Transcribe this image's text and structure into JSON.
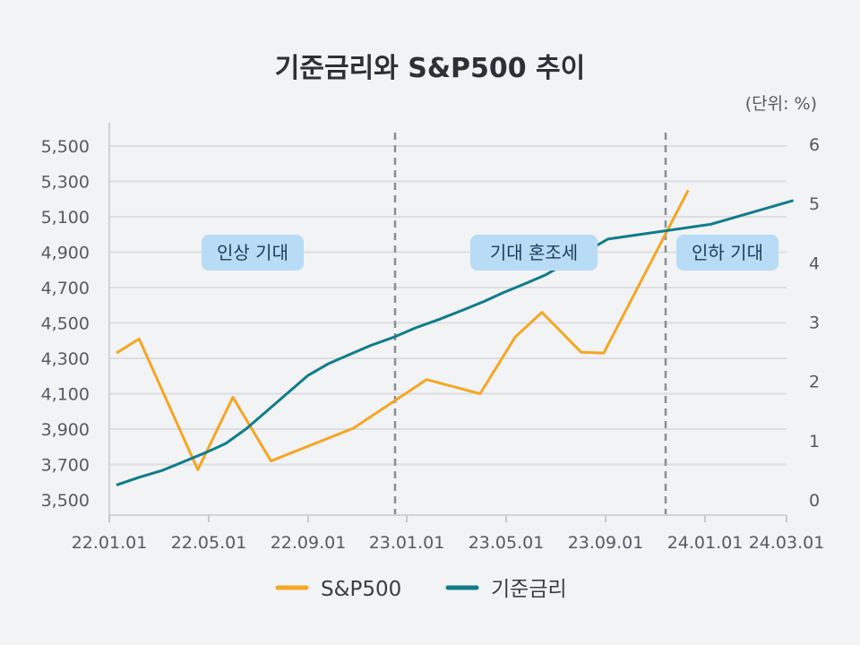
{
  "chart_data": {
    "type": "line",
    "title": "기준금리와 S&P500 추이",
    "unit_note": "(단위: %)",
    "x_ticks": [
      "22.01.01",
      "22.05.01",
      "22.09.01",
      "23.01.01",
      "23.05.01",
      "23.09.01",
      "24.01.01",
      "24.03.01"
    ],
    "y_left_ticks": [
      "3,500",
      "3,700",
      "3,900",
      "4,100",
      "4,300",
      "4,500",
      "4,700",
      "4,900",
      "5,100",
      "5,300",
      "5,500"
    ],
    "y_left_lim": [
      3500,
      5600
    ],
    "y_right_ticks": [
      "0",
      "1",
      "2",
      "3",
      "4",
      "5",
      "6"
    ],
    "y_right_lim": [
      0,
      6.1
    ],
    "series": [
      {
        "name": "S&P500",
        "axis": "left",
        "color": "#f5a623",
        "x": [
          0,
          2.2,
          7.9,
          11.3,
          15,
          23,
          30.1,
          35.3,
          38.7,
          41.3,
          45.1,
          47.3,
          55.5
        ],
        "y": [
          4330,
          4410,
          3670,
          4080,
          3720,
          3905,
          4180,
          4100,
          4420,
          4560,
          4335,
          4330,
          5250
        ]
      },
      {
        "name": "기준금리",
        "axis": "right",
        "color": "#0e7c8c",
        "x": [
          0,
          2.2,
          4.5,
          6.6,
          8.7,
          10.6,
          12.6,
          14.6,
          16.6,
          18.6,
          20.6,
          22.6,
          24.6,
          27,
          29,
          31.4,
          33.6,
          35.7,
          37.6,
          39.7,
          41.7,
          43.7,
          45.7,
          47.7,
          55.7,
          57.7,
          59.7,
          61.7,
          63.7,
          65.7
        ],
        "y": [
          0.25,
          0.38,
          0.5,
          0.65,
          0.8,
          0.95,
          1.2,
          1.5,
          1.8,
          2.1,
          2.3,
          2.45,
          2.6,
          2.75,
          2.9,
          3.05,
          3.2,
          3.35,
          3.5,
          3.65,
          3.8,
          4.0,
          4.2,
          4.4,
          4.6,
          4.65,
          4.75,
          4.85,
          4.95,
          5.05
        ]
      }
    ],
    "annotations": [
      "인상 기대",
      "기대 혼조세",
      "인하 기대"
    ],
    "legend": [
      "S&P500",
      "기준금리"
    ]
  }
}
